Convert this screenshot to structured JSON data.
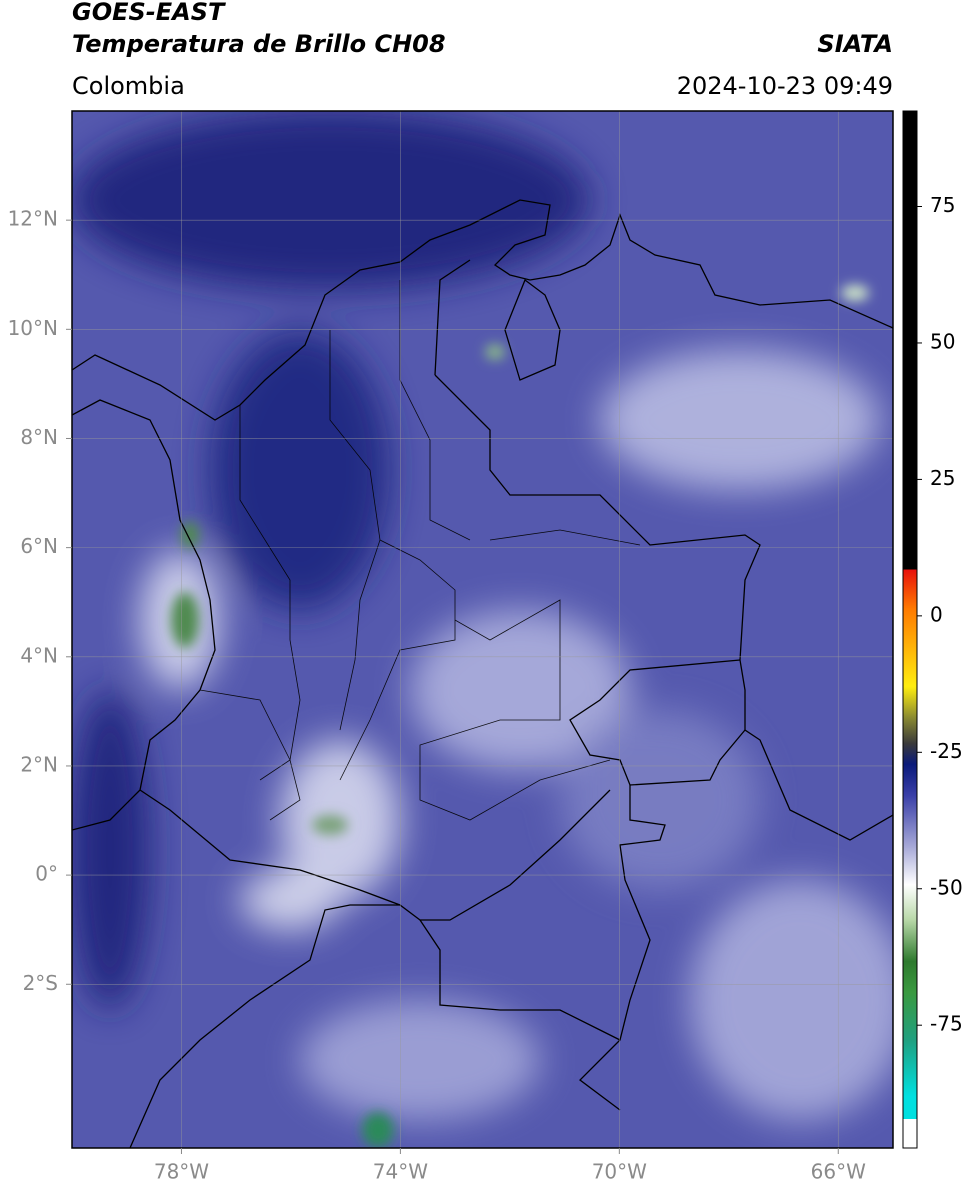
{
  "header": {
    "title": "GOES-EAST",
    "subtitle": "Temperatura de Brillo CH08",
    "source": "SIATA",
    "region": "Colombia",
    "datetime": "2024-10-23 09:49"
  },
  "map": {
    "xlim": [
      -80,
      -65
    ],
    "ylim": [
      -5,
      14
    ],
    "xticks": [
      {
        "value": -78,
        "label": "78°W"
      },
      {
        "value": -74,
        "label": "74°W"
      },
      {
        "value": -70,
        "label": "70°W"
      },
      {
        "value": -66,
        "label": "66°W"
      }
    ],
    "yticks": [
      {
        "value": 12,
        "label": "12°N"
      },
      {
        "value": 10,
        "label": "10°N"
      },
      {
        "value": 8,
        "label": "8°N"
      },
      {
        "value": 6,
        "label": "6°N"
      },
      {
        "value": 4,
        "label": "4°N"
      },
      {
        "value": 2,
        "label": "2°N"
      },
      {
        "value": 0,
        "label": "0°"
      },
      {
        "value": -2,
        "label": "2°S"
      }
    ],
    "grid": true
  },
  "colorbar": {
    "lim": [
      -97.5,
      92.5
    ],
    "ticks": [
      75,
      50,
      25,
      0,
      -25,
      -50,
      -75
    ]
  }
}
